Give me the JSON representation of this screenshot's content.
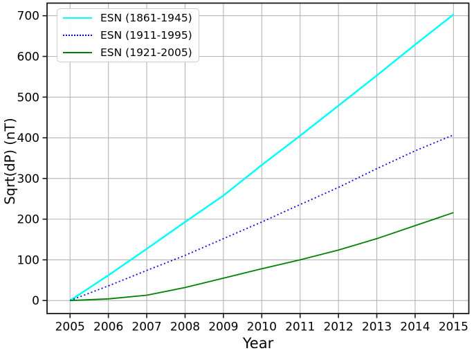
{
  "chart_data": {
    "type": "line",
    "title": "",
    "xlabel": "Year",
    "ylabel": "Sqrt(dP) (nT)",
    "x": [
      2005,
      2006,
      2007,
      2008,
      2009,
      2010,
      2011,
      2012,
      2013,
      2014,
      2015
    ],
    "xticks": [
      2005,
      2006,
      2007,
      2008,
      2009,
      2010,
      2011,
      2012,
      2013,
      2014,
      2015
    ],
    "yticks": [
      0,
      100,
      200,
      300,
      400,
      500,
      600,
      700
    ],
    "xlim": [
      2004.4,
      2015.4
    ],
    "ylim": [
      -32,
      731
    ],
    "grid": true,
    "grid_color": "#b4b4b4",
    "axis_color": "#1a1a1a",
    "legend_position": "upper-left",
    "series": [
      {
        "name": "ESN (1861-1945)",
        "color": "#00ffff",
        "style": "solid",
        "width": 2.5,
        "values": [
          0,
          62,
          127,
          193,
          258,
          333,
          405,
          479,
          553,
          629,
          703
        ]
      },
      {
        "name": "ESN (1911-1995)",
        "color": "#0000ee",
        "style": "dotted",
        "width": 1.8,
        "values": [
          0,
          36,
          74,
          111,
          152,
          193,
          236,
          278,
          324,
          368,
          407
        ]
      },
      {
        "name": "ESN (1921-2005)",
        "color": "#008000",
        "style": "solid",
        "width": 1.8,
        "values": [
          0,
          4,
          13,
          32,
          55,
          78,
          100,
          124,
          152,
          184,
          216
        ]
      }
    ]
  }
}
